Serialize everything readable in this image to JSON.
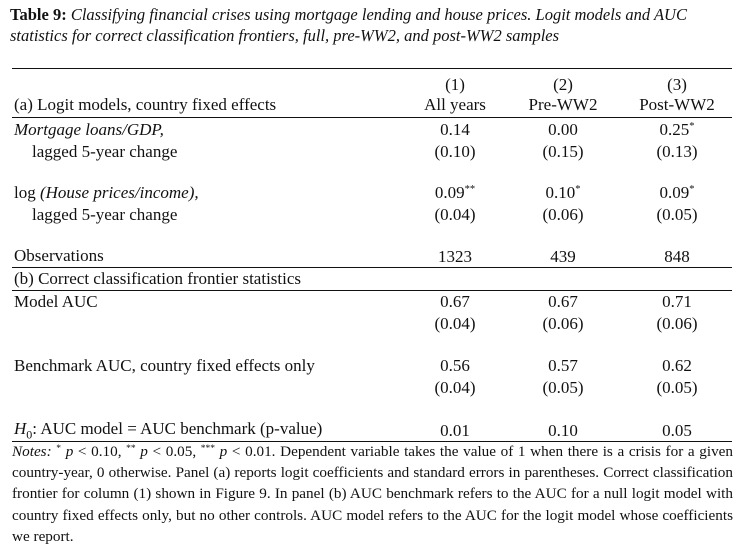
{
  "caption": {
    "label": "Table 9:",
    "text": "Classifying financial crises using mortgage lending and house prices. Logit models and AUC statistics for correct classification frontiers, full, pre-WW2, and post-WW2 samples"
  },
  "table": {
    "column_numbers": [
      "(1)",
      "(2)",
      "(3)"
    ],
    "columns": [
      "All years",
      "Pre-WW2",
      "Post-WW2"
    ],
    "panel_a": {
      "title": "(a) Logit models, country fixed effects",
      "rows": [
        {
          "label": "Mortgage loans/GDP,",
          "label_cont": "lagged 5-year change",
          "coefficients": [
            {
              "value": "0.14"
            },
            {
              "value": "0.00"
            },
            {
              "value": "0.25",
              "stars": "*"
            }
          ],
          "errors": [
            "(0.10)",
            "(0.15)",
            "(0.13)"
          ]
        },
        {
          "label_prefix": "log",
          "label": "(House prices/income),",
          "label_cont": "lagged 5-year change",
          "coefficients": [
            {
              "value": "0.09",
              "stars": "**"
            },
            {
              "value": "0.10",
              "stars": "*"
            },
            {
              "value": "0.09",
              "stars": "*"
            }
          ],
          "errors": [
            "(0.04)",
            "(0.06)",
            "(0.05)"
          ]
        }
      ],
      "observations": {
        "label": "Observations",
        "values": [
          1323,
          439,
          848
        ]
      }
    },
    "panel_b": {
      "title": "(b) Correct classification frontier statistics",
      "rows": [
        {
          "label": "Model AUC",
          "coefficients": [
            {
              "value": "0.67"
            },
            {
              "value": "0.67"
            },
            {
              "value": "0.71"
            }
          ],
          "errors": [
            "(0.04)",
            "(0.06)",
            "(0.06)"
          ]
        },
        {
          "label": "Benchmark AUC, country fixed effects only",
          "coefficients": [
            {
              "value": "0.56"
            },
            {
              "value": "0.57"
            },
            {
              "value": "0.62"
            }
          ],
          "errors": [
            "(0.04)",
            "(0.05)",
            "(0.05)"
          ]
        }
      ],
      "test": {
        "label_h": "H",
        "label_sub": "0",
        "label_rest": ": AUC model = AUC benchmark (p-value)",
        "values": [
          "0.01",
          "0.10",
          "0.05"
        ]
      }
    }
  },
  "notes": [
    "Notes:",
    "*",
    "p",
    "< 0.10,",
    "**",
    "p",
    "< 0.05,",
    "***",
    "p",
    "< 0.01. Dependent variable takes the value of 1 when there is a crisis for a given country-year, 0 otherwise. Panel (a) reports logit coefficients and standard errors in parentheses. Correct classification frontier for column (1) shown in Figure 9. In panel (b) AUC benchmark refers to the AUC for a null logit model with country fixed effects only, but no other controls. AUC model refers to the AUC for the logit model whose coefficients we report."
  ]
}
